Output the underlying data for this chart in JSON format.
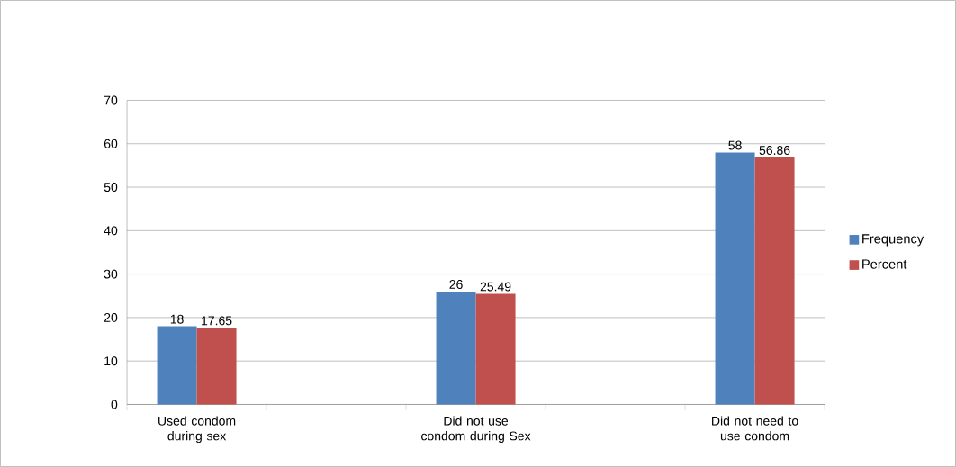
{
  "chart_data": {
    "type": "bar",
    "categories": [
      "Used condom during sex",
      null,
      "Did not use condom during Sex",
      null,
      "Did not need to use condom"
    ],
    "series": [
      {
        "name": "Frequency",
        "color": "#4f81bd",
        "values": [
          18,
          null,
          26,
          null,
          58
        ]
      },
      {
        "name": "Percent",
        "color": "#c0504d",
        "values": [
          17.65,
          null,
          25.49,
          null,
          56.86
        ]
      }
    ],
    "ylim": [
      0,
      70
    ],
    "yticks": [
      0,
      10,
      20,
      30,
      40,
      50,
      60,
      70
    ],
    "grid": "y",
    "legend": "right",
    "data_labels": true
  }
}
